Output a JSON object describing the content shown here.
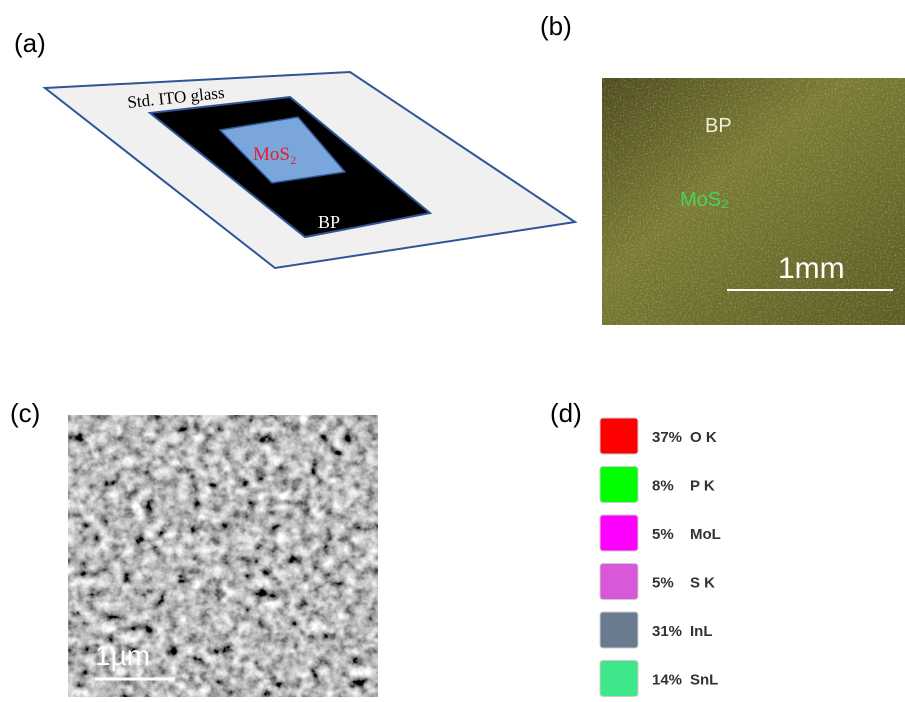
{
  "panels": {
    "a": {
      "label": "(a)",
      "substrate": "Std. ITO glass",
      "inner": "MoS₂",
      "outer": "BP"
    },
    "b": {
      "label": "(b)",
      "region_top": "BP",
      "region_bottom": "MoS₂",
      "scale": "1mm"
    },
    "c": {
      "label": "(c)",
      "scale": "1µm"
    },
    "d": {
      "label": "(d)",
      "items": [
        {
          "percent": "37%",
          "element": "O K",
          "color": "#ff0000"
        },
        {
          "percent": "8%",
          "element": "P K",
          "color": "#00ff00"
        },
        {
          "percent": "5%",
          "element": "MoL",
          "color": "#ff00ff"
        },
        {
          "percent": "5%",
          "element": "S K",
          "color": "#d957d9"
        },
        {
          "percent": "31%",
          "element": "InL",
          "color": "#6b7b8f"
        },
        {
          "percent": "14%",
          "element": "SnL",
          "color": "#3ee88a"
        }
      ]
    }
  }
}
